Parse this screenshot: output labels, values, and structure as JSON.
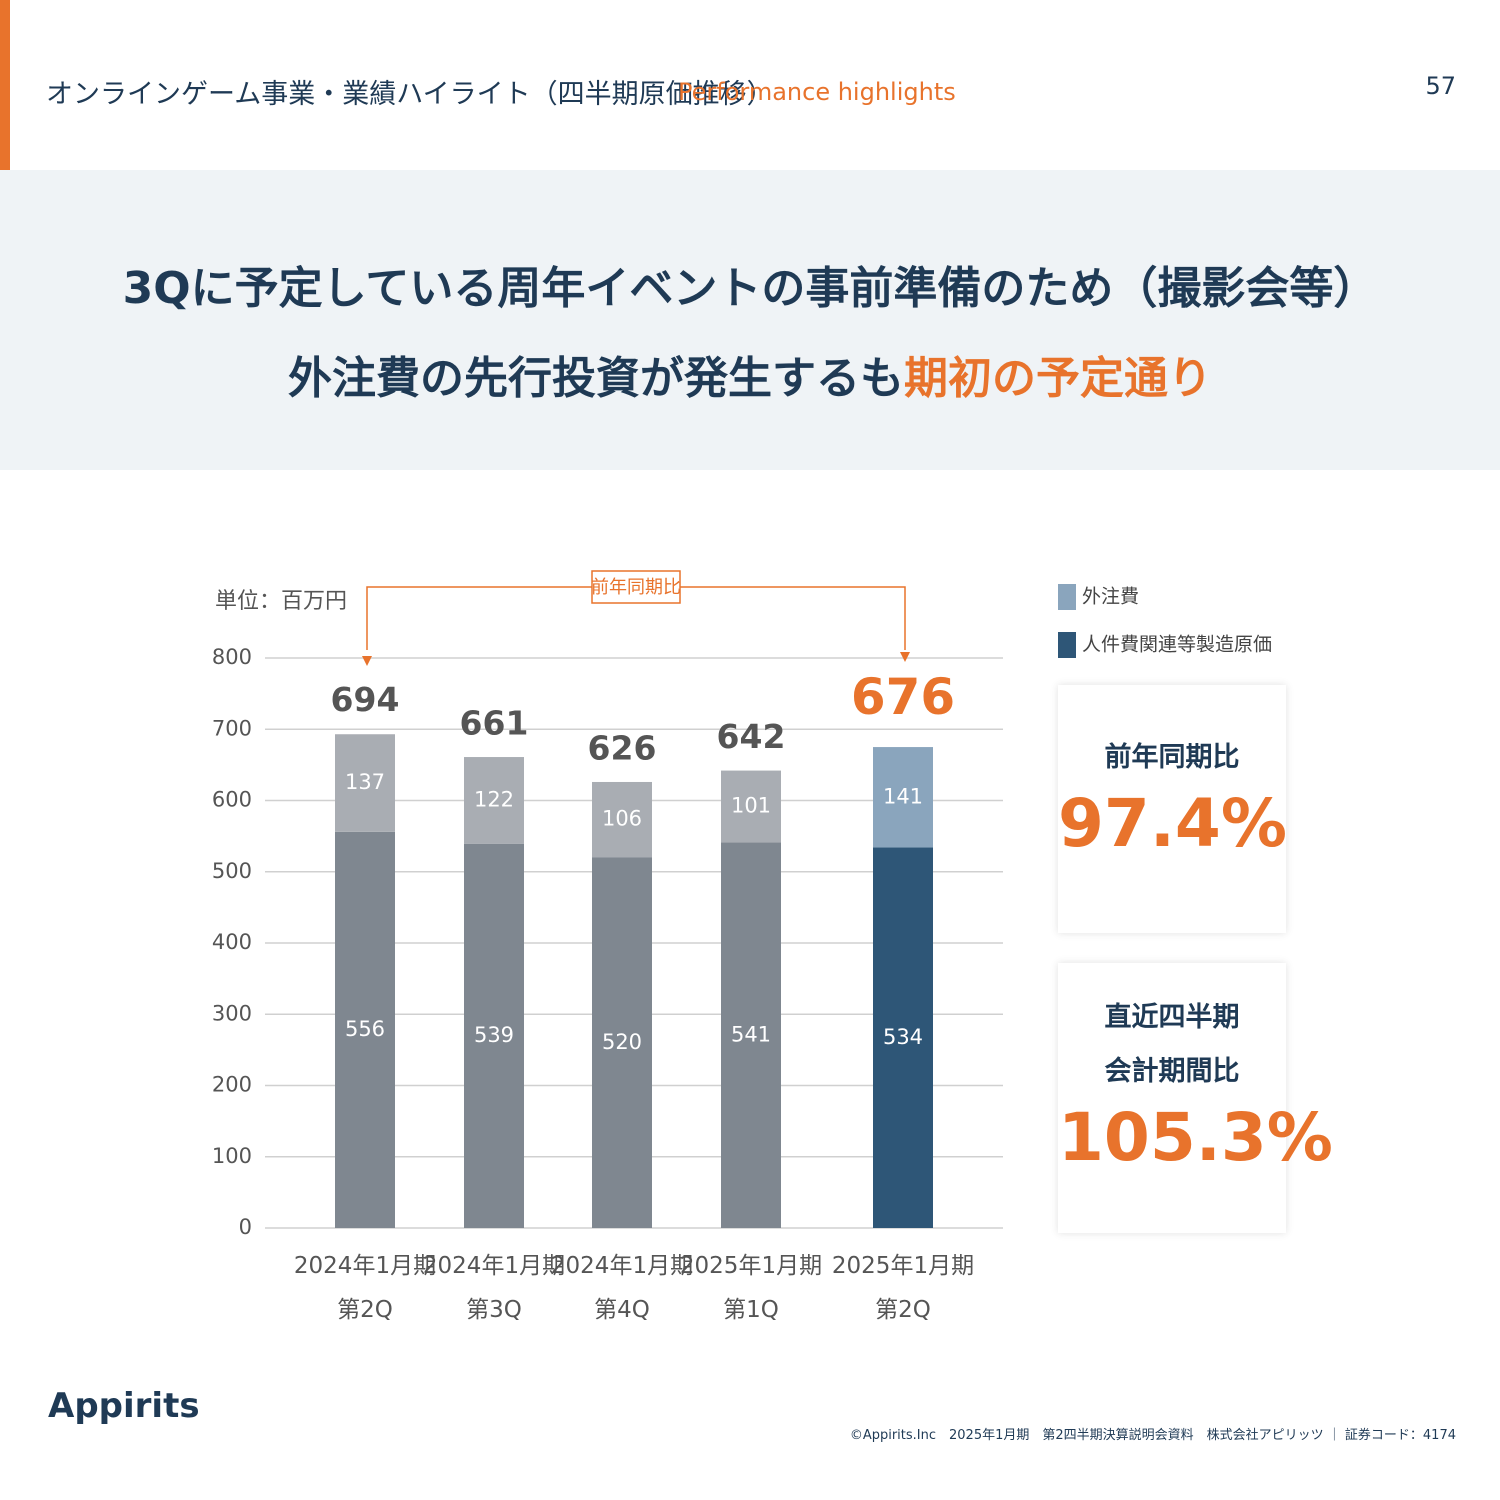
{
  "header": {
    "title": "オンラインゲーム事業・業績ハイライト（四半期原価推移）",
    "subtitle": "Performance highlights",
    "page_number": "57"
  },
  "headline": {
    "line1": "3Qに予定している周年イベントの事前準備のため（撮影会等）",
    "line2": "外注費の先行投資が発生するも",
    "line2_emphasis": "期初の予定通り"
  },
  "chart_data": {
    "type": "stacked_bar",
    "unit_label": "単位：百万円",
    "categories": [
      "2024年1月期\n第2Q",
      "2024年1月期\n第3Q",
      "2024年1月期\n第4Q",
      "2025年1月期\n第1Q",
      "2025年1月期\n第2Q"
    ],
    "series": [
      {
        "name": "外注費",
        "color": "#8aa5bd",
        "bar_colors": [
          "#a9adb3",
          "#a9adb3",
          "#a9adb3",
          "#a9adb3",
          "#8aa5bd"
        ],
        "values": [
          137,
          122,
          106,
          101,
          141
        ]
      },
      {
        "name": "人件費関連等製造原価",
        "color": "#2e5677",
        "bar_colors": [
          "#7f8790",
          "#7f8790",
          "#7f8790",
          "#7f8790",
          "#2e5677"
        ],
        "values": [
          556,
          539,
          520,
          541,
          534
        ]
      }
    ],
    "totals": [
      694,
      661,
      626,
      642,
      676
    ],
    "annotation": "前年同期比",
    "ylim": [
      0,
      800
    ],
    "yticks": [
      0,
      100,
      200,
      300,
      400,
      500,
      600,
      700,
      800
    ],
    "grid": true
  },
  "kpis": [
    {
      "title": "前年同期比",
      "value": "97.4%"
    },
    {
      "title": "直近四半期\n会計期間比",
      "value": "105.3%"
    }
  ],
  "footer": {
    "logo": "Appirits",
    "text": "©Appirits.Inc　2025年1月期　第2四半期決算説明会資料　株式会社アピリッツ ｜ 証券コード：4174"
  }
}
